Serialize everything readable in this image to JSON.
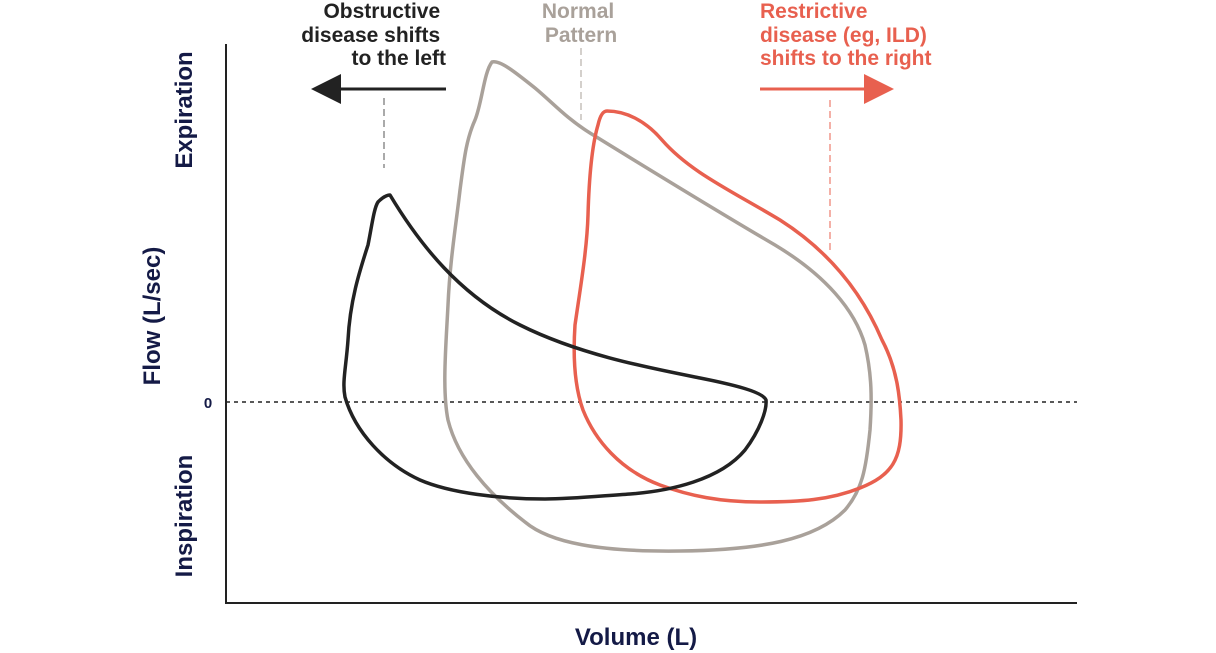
{
  "axes": {
    "y_title": "Flow (L/sec)",
    "x_title": "Volume (L)",
    "upper_label": "Expiration",
    "lower_label": "Inspiration",
    "zero_tick": "0"
  },
  "annotations": {
    "obstructive": {
      "lines": [
        "Obstructive",
        "disease shifts",
        "to the left"
      ],
      "color": "#222222",
      "arrow": "left-arrow"
    },
    "normal": {
      "lines": [
        "Normal",
        "Pattern"
      ],
      "color": "#a9a19a"
    },
    "restrictive": {
      "lines": [
        "Restrictive",
        "disease (eg, ILD)",
        "shifts to the right"
      ],
      "color": "#e8604f",
      "arrow": "right-arrow"
    }
  },
  "curves": [
    {
      "id": "obstructive",
      "color": "#222222"
    },
    {
      "id": "normal",
      "color": "#a9a19a"
    },
    {
      "id": "restrictive",
      "color": "#e8604f"
    }
  ],
  "colors": {
    "axis": "#222222",
    "axis_text": "#141a46"
  }
}
